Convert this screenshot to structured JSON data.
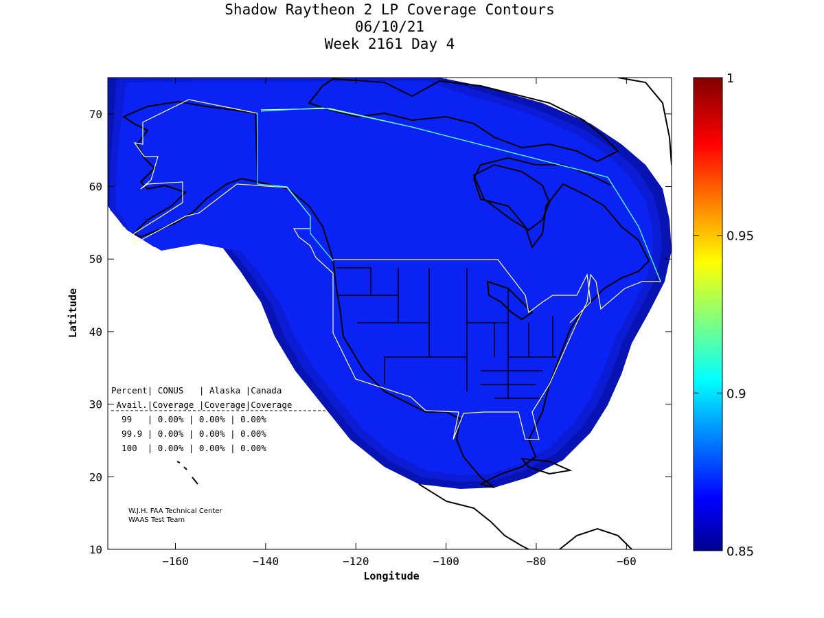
{
  "title": {
    "line1": "Shadow Raytheon 2 LP Coverage Contours",
    "line2": "06/10/21",
    "line3": "Week 2161 Day 4"
  },
  "axes": {
    "xlabel": "Longitude",
    "ylabel": "Latitude",
    "xlim": [
      -175,
      -50
    ],
    "ylim": [
      10,
      75
    ],
    "xticks": [
      -160,
      -140,
      -120,
      -100,
      -80,
      -60
    ],
    "yticks": [
      10,
      20,
      30,
      40,
      50,
      60,
      70
    ]
  },
  "colorbar": {
    "min": 0.85,
    "max": 1,
    "labels": [
      "1",
      "0.95",
      "0.9",
      "0.85"
    ],
    "label_values": [
      1,
      0.95,
      0.9,
      0.85
    ]
  },
  "coverage_table": {
    "header1": "Percent| CONUS   | Alaska |Canada",
    "header2": " Avail.|Coverage |Coverage|Coverage",
    "rows": [
      "  99   | 0.00% | 0.00% | 0.00%",
      "  99.9 | 0.00% | 0.00% | 0.00%",
      "  100  | 0.00% | 0.00% | 0.00%"
    ]
  },
  "credit": {
    "line1": "W.J.H. FAA Technical Center",
    "line2": "WAAS Test Team"
  },
  "colors": {
    "coverage_fill": "#0a22f2",
    "coverage_edge": "#0b1cd4",
    "coverage_outer": "#0713b2",
    "region_outline": "#ffffa0",
    "region_outline_canada": "#40ffff"
  }
}
